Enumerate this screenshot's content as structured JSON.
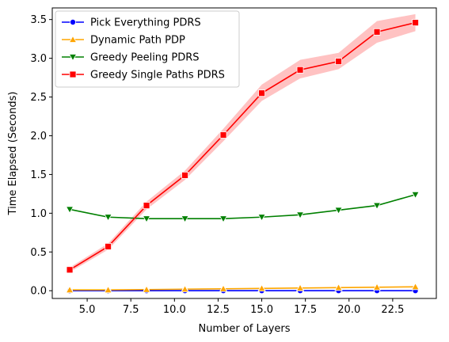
{
  "chart_data": {
    "type": "line",
    "title": "",
    "xlabel": "Number of Layers",
    "ylabel": "Time Elapsed (Seconds)",
    "xlim": [
      3.0,
      25.0
    ],
    "ylim": [
      -0.1,
      3.65
    ],
    "xticks": [
      5.0,
      7.5,
      10.0,
      12.5,
      15.0,
      17.5,
      20.0,
      22.5
    ],
    "xtick_labels": [
      "5.0",
      "7.5",
      "10.0",
      "12.5",
      "15.0",
      "17.5",
      "20.0",
      "22.5"
    ],
    "yticks": [
      0.0,
      0.5,
      1.0,
      1.5,
      2.0,
      2.5,
      3.0,
      3.5
    ],
    "ytick_labels": [
      "0.0",
      "0.5",
      "1.0",
      "1.5",
      "2.0",
      "2.5",
      "3.0",
      "3.5"
    ],
    "grid": false,
    "legend_position": "top-left",
    "x": [
      4,
      6.2,
      8.4,
      10.6,
      12.8,
      15,
      17.2,
      19.4,
      21.6,
      23.8
    ],
    "series": [
      {
        "name": "Pick Everything PDRS",
        "color": "#0000ff",
        "marker": "circle",
        "values": [
          0.0,
          0.0,
          0.0,
          0.0,
          0.0,
          0.0,
          0.0,
          0.0,
          0.0,
          0.0
        ]
      },
      {
        "name": "Dynamic Path PDP",
        "color": "#ffa500",
        "marker": "triangle-up",
        "values": [
          0.01,
          0.01,
          0.015,
          0.02,
          0.025,
          0.03,
          0.035,
          0.04,
          0.045,
          0.05
        ]
      },
      {
        "name": "Greedy Peeling PDRS",
        "color": "#008000",
        "marker": "triangle-down",
        "values": [
          1.05,
          0.95,
          0.93,
          0.93,
          0.93,
          0.95,
          0.98,
          1.04,
          1.1,
          1.24
        ]
      },
      {
        "name": "Greedy Single Paths PDRS",
        "color": "#ff0000",
        "marker": "square",
        "band_color": "#ff9999",
        "values": [
          0.27,
          0.57,
          1.1,
          1.49,
          2.01,
          2.55,
          2.85,
          2.96,
          3.34,
          3.46
        ],
        "lower": [
          0.24,
          0.53,
          1.05,
          1.43,
          1.93,
          2.45,
          2.74,
          2.86,
          3.2,
          3.35
        ],
        "upper": [
          0.3,
          0.61,
          1.15,
          1.55,
          2.09,
          2.66,
          2.98,
          3.07,
          3.48,
          3.57
        ]
      }
    ]
  }
}
